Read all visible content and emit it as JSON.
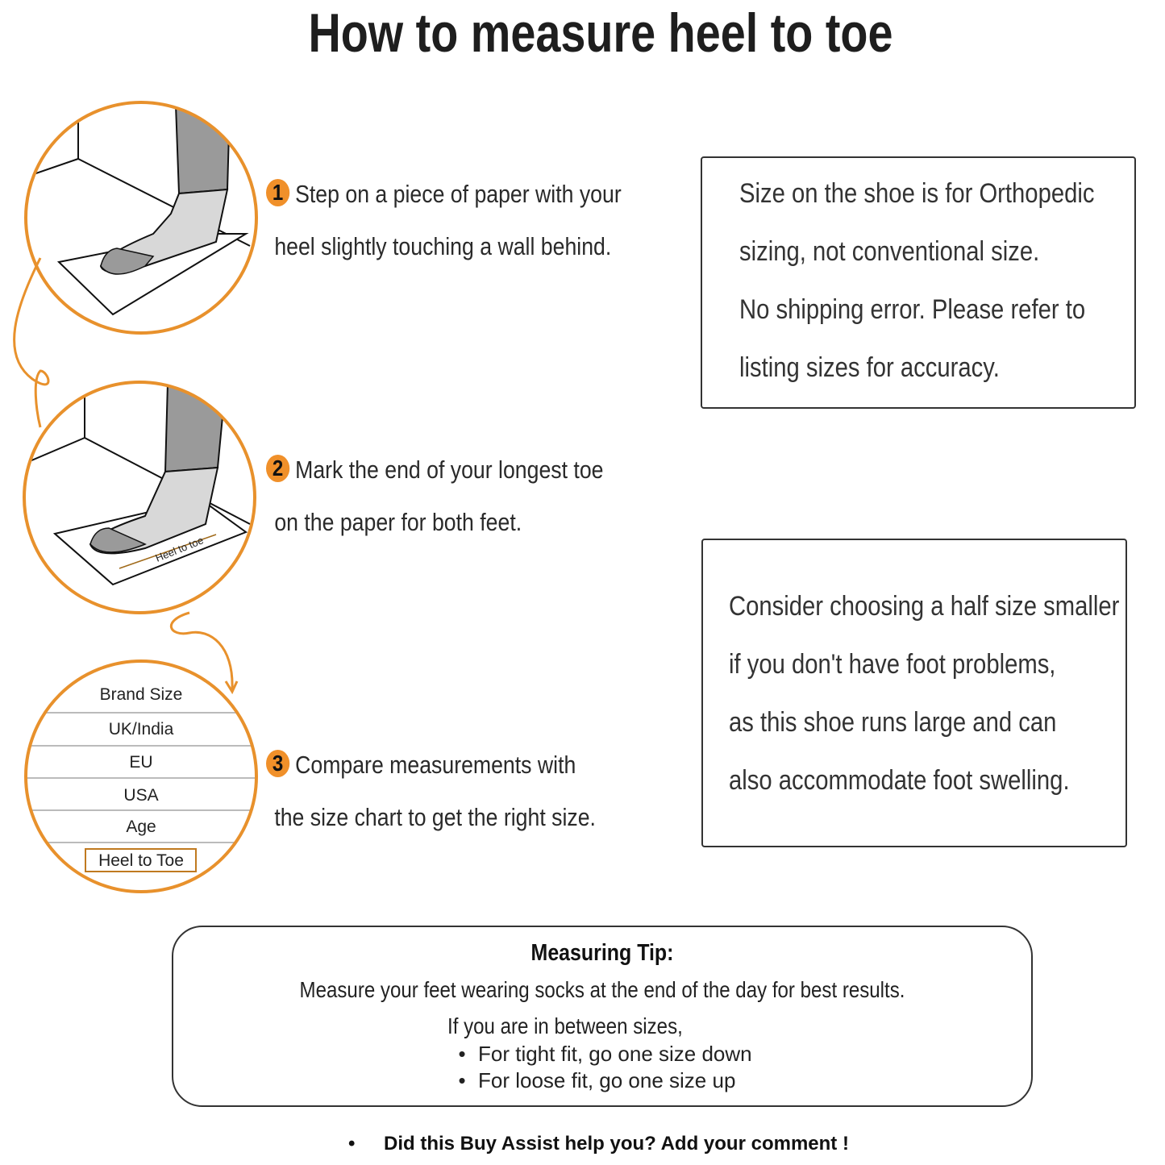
{
  "title": "How to measure heel to toe",
  "steps": [
    {
      "number": "1",
      "line1": "Step on a piece of paper with your",
      "line2": "heel slightly touching a wall behind."
    },
    {
      "number": "2",
      "line1": "Mark the end of your longest toe",
      "line2": "on the paper for both feet."
    },
    {
      "number": "3",
      "line1": "Compare measurements with",
      "line2": "the size chart to get the right size."
    }
  ],
  "illustration": {
    "paper_label": "Heel to toe",
    "size_chart_rows": [
      "Brand Size",
      "UK/India",
      "EU",
      "USA",
      "Age",
      "Heel to Toe"
    ],
    "accent_color": "#e8912c"
  },
  "notes": {
    "orthopedic": [
      "Size on the shoe is for Orthopedic",
      "sizing, not conventional size.",
      "No shipping error. Please refer to",
      "listing sizes for accuracy."
    ],
    "half_size": [
      "Consider choosing a half size smaller",
      "if you don't have foot problems,",
      "as this shoe runs large and can",
      "also accommodate foot swelling."
    ]
  },
  "tip": {
    "title": "Measuring Tip:",
    "main": "Measure your feet wearing socks at the end of the day for best results.",
    "between": "If you are in between sizes,",
    "bullets": [
      "For tight fit, go one size down",
      "For loose fit, go one size up"
    ]
  },
  "footer": "Did this Buy Assist help you? Add your comment !"
}
